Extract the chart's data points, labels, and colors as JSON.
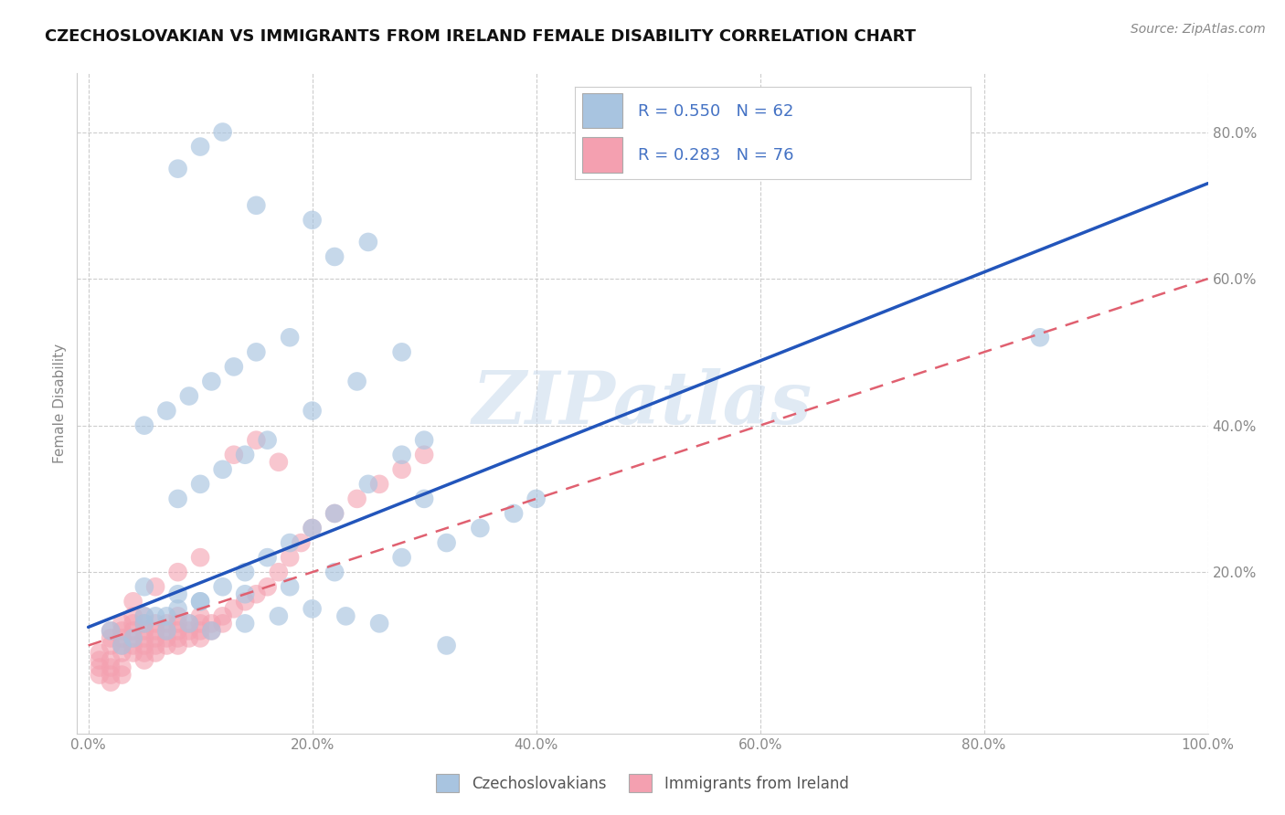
{
  "title": "CZECHOSLOVAKIAN VS IMMIGRANTS FROM IRELAND FEMALE DISABILITY CORRELATION CHART",
  "source": "Source: ZipAtlas.com",
  "xlabel": "",
  "ylabel": "Female Disability",
  "xlim": [
    -0.01,
    1.0
  ],
  "ylim": [
    -0.02,
    0.88
  ],
  "xtick_labels": [
    "0.0%",
    "20.0%",
    "40.0%",
    "60.0%",
    "80.0%",
    "100.0%"
  ],
  "xtick_vals": [
    0.0,
    0.2,
    0.4,
    0.6,
    0.8,
    1.0
  ],
  "ytick_labels": [
    "20.0%",
    "40.0%",
    "60.0%",
    "80.0%"
  ],
  "ytick_vals": [
    0.2,
    0.4,
    0.6,
    0.8
  ],
  "blue_color": "#a8c4e0",
  "blue_line_color": "#2255bb",
  "pink_color": "#f4a0b0",
  "pink_line_color": "#e06070",
  "legend_text_color": "#4472c4",
  "R_blue": 0.55,
  "N_blue": 62,
  "R_pink": 0.283,
  "N_pink": 76,
  "watermark": "ZIPatlas",
  "legend1_label": "Czechoslovakians",
  "legend2_label": "Immigrants from Ireland",
  "blue_line_x0": 0.0,
  "blue_line_y0": 0.125,
  "blue_line_x1": 1.0,
  "blue_line_y1": 0.73,
  "pink_line_x0": 0.0,
  "pink_line_y0": 0.1,
  "pink_line_x1": 1.0,
  "pink_line_y1": 0.6,
  "blue_scatter_x": [
    0.02,
    0.03,
    0.04,
    0.05,
    0.06,
    0.07,
    0.08,
    0.1,
    0.12,
    0.14,
    0.16,
    0.18,
    0.2,
    0.22,
    0.25,
    0.28,
    0.3,
    0.05,
    0.07,
    0.09,
    0.11,
    0.13,
    0.15,
    0.18,
    0.08,
    0.1,
    0.12,
    0.15,
    0.2,
    0.25,
    0.28,
    0.32,
    0.35,
    0.38,
    0.4,
    0.22,
    0.08,
    0.1,
    0.12,
    0.14,
    0.16,
    0.2,
    0.24,
    0.28,
    0.05,
    0.07,
    0.09,
    0.11,
    0.14,
    0.17,
    0.2,
    0.23,
    0.26,
    0.05,
    0.08,
    0.1,
    0.14,
    0.18,
    0.22,
    0.3,
    0.85,
    0.32
  ],
  "blue_scatter_y": [
    0.12,
    0.1,
    0.11,
    0.13,
    0.14,
    0.12,
    0.15,
    0.16,
    0.18,
    0.2,
    0.22,
    0.24,
    0.26,
    0.28,
    0.32,
    0.36,
    0.38,
    0.4,
    0.42,
    0.44,
    0.46,
    0.48,
    0.5,
    0.52,
    0.75,
    0.78,
    0.8,
    0.7,
    0.68,
    0.65,
    0.22,
    0.24,
    0.26,
    0.28,
    0.3,
    0.63,
    0.3,
    0.32,
    0.34,
    0.36,
    0.38,
    0.42,
    0.46,
    0.5,
    0.14,
    0.14,
    0.13,
    0.12,
    0.13,
    0.14,
    0.15,
    0.14,
    0.13,
    0.18,
    0.17,
    0.16,
    0.17,
    0.18,
    0.2,
    0.3,
    0.52,
    0.1
  ],
  "pink_scatter_x": [
    0.01,
    0.01,
    0.02,
    0.02,
    0.02,
    0.02,
    0.03,
    0.03,
    0.03,
    0.03,
    0.03,
    0.04,
    0.04,
    0.04,
    0.04,
    0.04,
    0.04,
    0.05,
    0.05,
    0.05,
    0.05,
    0.05,
    0.05,
    0.05,
    0.06,
    0.06,
    0.06,
    0.06,
    0.06,
    0.07,
    0.07,
    0.07,
    0.07,
    0.08,
    0.08,
    0.08,
    0.08,
    0.08,
    0.09,
    0.09,
    0.09,
    0.1,
    0.1,
    0.1,
    0.1,
    0.11,
    0.11,
    0.12,
    0.12,
    0.13,
    0.14,
    0.15,
    0.16,
    0.17,
    0.18,
    0.19,
    0.2,
    0.22,
    0.24,
    0.26,
    0.28,
    0.3,
    0.13,
    0.15,
    0.17,
    0.1,
    0.08,
    0.06,
    0.04,
    0.03,
    0.02,
    0.02,
    0.01,
    0.01,
    0.02,
    0.03
  ],
  "pink_scatter_y": [
    0.07,
    0.09,
    0.08,
    0.1,
    0.11,
    0.12,
    0.09,
    0.1,
    0.11,
    0.12,
    0.13,
    0.09,
    0.1,
    0.11,
    0.12,
    0.13,
    0.14,
    0.08,
    0.09,
    0.1,
    0.11,
    0.12,
    0.13,
    0.14,
    0.09,
    0.1,
    0.11,
    0.12,
    0.13,
    0.1,
    0.11,
    0.12,
    0.13,
    0.1,
    0.11,
    0.12,
    0.13,
    0.14,
    0.11,
    0.12,
    0.13,
    0.11,
    0.12,
    0.13,
    0.14,
    0.12,
    0.13,
    0.13,
    0.14,
    0.15,
    0.16,
    0.17,
    0.18,
    0.2,
    0.22,
    0.24,
    0.26,
    0.28,
    0.3,
    0.32,
    0.34,
    0.36,
    0.36,
    0.38,
    0.35,
    0.22,
    0.2,
    0.18,
    0.16,
    0.06,
    0.07,
    0.05,
    0.06,
    0.08,
    0.06,
    0.07
  ]
}
